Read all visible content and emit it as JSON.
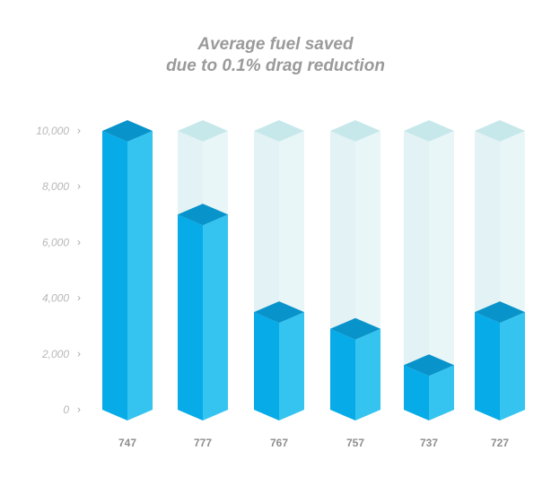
{
  "chart_data": {
    "type": "bar",
    "title_lines": [
      "Average fuel saved",
      "due to 0.1% drag reduction"
    ],
    "categories": [
      "747",
      "777",
      "767",
      "757",
      "737",
      "727"
    ],
    "values": [
      10000,
      7000,
      3500,
      2900,
      1600,
      3500
    ],
    "y_ticks": [
      "0",
      "2,000",
      "4,000",
      "6,000",
      "8,000",
      "10,000"
    ],
    "tick_marker": "›",
    "ylim": [
      0,
      10000
    ],
    "xlabel": "",
    "ylabel": "",
    "grid": false,
    "style": "3d-column-with-translucent-max-container",
    "colors": {
      "bar_front": "#07abe7",
      "bar_side": "#35c4ef",
      "bar_top": "#0893cb",
      "ghost_front": "#e3f2f4",
      "ghost_side": "#e9f6f8",
      "ghost_top": "#c7e8ea"
    }
  }
}
